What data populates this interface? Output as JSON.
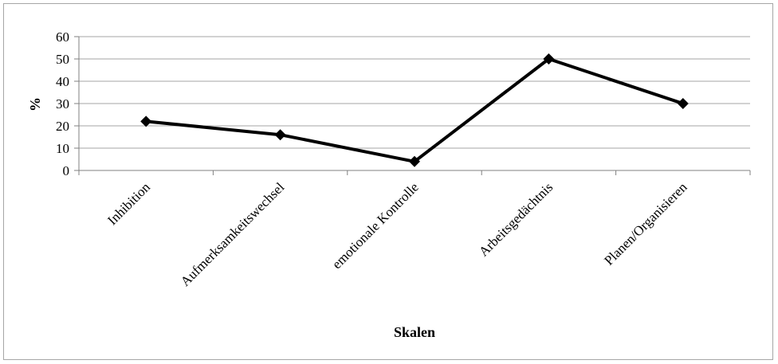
{
  "chart_data": {
    "type": "line",
    "title": "",
    "xlabel": "Skalen",
    "ylabel": "%",
    "categories": [
      "Inhibition",
      "Aufmerksamkeitswechsel",
      "emotionale Kontrolle",
      "Arbeitsgedächtnis",
      "Planen/Organisieren"
    ],
    "series": [
      {
        "values": [
          22,
          16,
          4,
          50,
          30
        ]
      }
    ],
    "ylim": [
      0,
      60
    ],
    "yticks": [
      0,
      10,
      20,
      30,
      40,
      50,
      60
    ],
    "grid": true,
    "legend": "none",
    "colors": {
      "line": "#000000",
      "marker": "#000000",
      "grid": "#a6a6a6",
      "axis": "#808080",
      "frame": "#a6a6a6"
    },
    "marker": "diamond-icon"
  }
}
